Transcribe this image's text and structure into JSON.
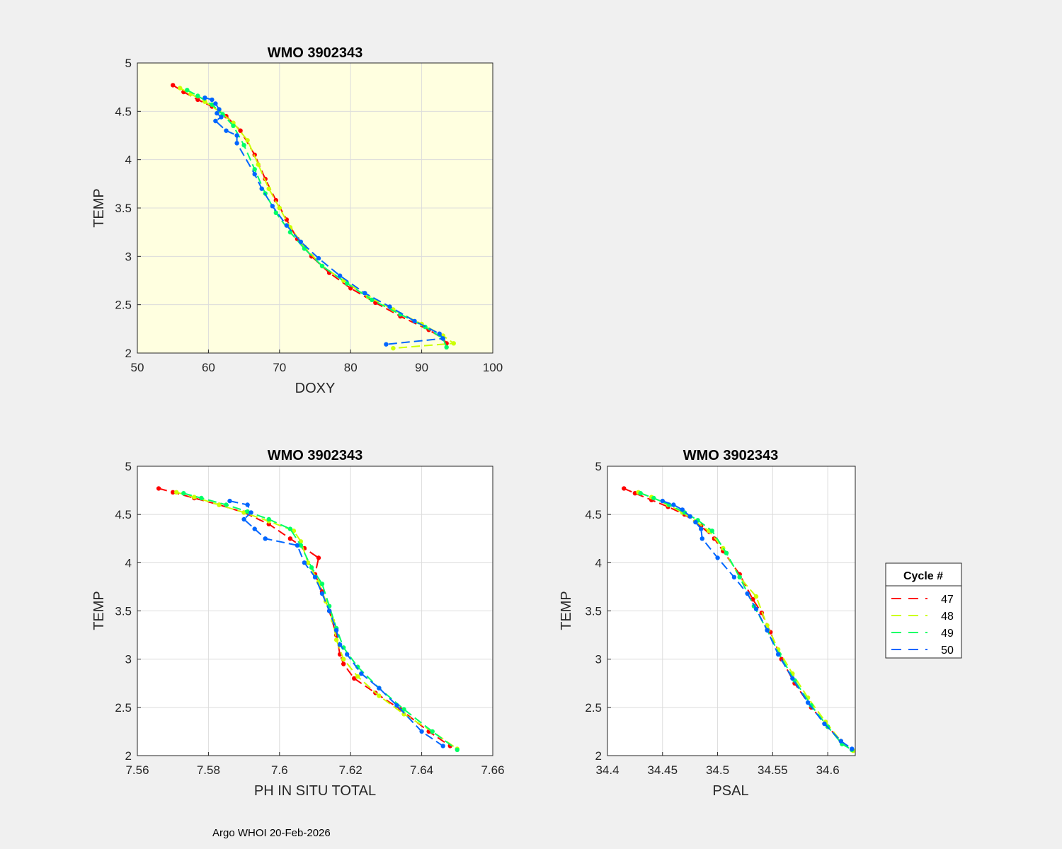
{
  "figure": {
    "background": "#f0f0f0",
    "footer": "Argo WHOI 20-Feb-2026",
    "legend": {
      "title": "Cycle #",
      "entries": [
        {
          "label": "47",
          "color": "#ff0000"
        },
        {
          "label": "48",
          "color": "#ccff00"
        },
        {
          "label": "49",
          "color": "#00ff66"
        },
        {
          "label": "50",
          "color": "#0066ff"
        }
      ]
    }
  },
  "chart_data": [
    {
      "id": "doxy",
      "type": "line",
      "title": "WMO 3902343",
      "xlabel": "DOXY",
      "ylabel": "TEMP",
      "xlim": [
        50,
        100
      ],
      "ylim": [
        2,
        5
      ],
      "xticks": [
        "50",
        "60",
        "70",
        "80",
        "90",
        "100"
      ],
      "xtick_values": [
        50,
        60,
        70,
        80,
        90,
        100
      ],
      "yticks": [
        "2",
        "2.5",
        "3",
        "3.5",
        "4",
        "4.5",
        "5"
      ],
      "ytick_values": [
        2,
        2.5,
        3,
        3.5,
        4,
        4.5,
        5
      ],
      "grid": true,
      "plot_background": "#ffffe0",
      "series": [
        {
          "name": "47",
          "color": "#ff0000",
          "x": [
            55.0,
            56.5,
            58.5,
            60.5,
            62.5,
            64.5,
            66.5,
            68.0,
            69.5,
            71.0,
            72.5,
            74.5,
            77.0,
            80.0,
            83.5,
            87.0,
            91.0,
            93.0,
            93.5
          ],
          "y": [
            4.77,
            4.7,
            4.62,
            4.55,
            4.45,
            4.3,
            4.05,
            3.8,
            3.58,
            3.38,
            3.18,
            3.0,
            2.83,
            2.67,
            2.52,
            2.38,
            2.24,
            2.15,
            2.1
          ]
        },
        {
          "name": "48",
          "color": "#ccff00",
          "x": [
            56.0,
            57.5,
            59.5,
            61.5,
            63.5,
            65.5,
            67.0,
            68.5,
            70.0,
            71.5,
            73.5,
            76.0,
            79.0,
            82.5,
            86.0,
            90.0,
            93.0,
            94.5,
            86.0
          ],
          "y": [
            4.74,
            4.68,
            4.6,
            4.5,
            4.38,
            4.2,
            3.95,
            3.7,
            3.5,
            3.3,
            3.1,
            2.9,
            2.75,
            2.58,
            2.45,
            2.3,
            2.18,
            2.1,
            2.05
          ]
        },
        {
          "name": "49",
          "color": "#00ff66",
          "x": [
            57.0,
            58.5,
            60.5,
            62.0,
            63.5,
            65.0,
            66.5,
            68.0,
            69.5,
            71.5,
            73.5,
            76.0,
            79.5,
            83.0,
            87.0,
            90.5,
            93.0,
            93.5
          ],
          "y": [
            4.72,
            4.66,
            4.57,
            4.47,
            4.35,
            4.15,
            3.9,
            3.65,
            3.45,
            3.25,
            3.08,
            2.9,
            2.72,
            2.55,
            2.4,
            2.27,
            2.15,
            2.06
          ]
        },
        {
          "name": "50",
          "color": "#0066ff",
          "x": [
            59.5,
            60.5,
            61.0,
            61.5,
            61.2,
            61.8,
            61.0,
            62.5,
            64.0,
            64.0,
            66.5,
            67.5,
            69.0,
            71.0,
            73.0,
            75.5,
            78.5,
            82.0,
            85.5,
            89.0,
            92.5,
            93.0,
            85.0
          ],
          "y": [
            4.64,
            4.62,
            4.58,
            4.52,
            4.48,
            4.44,
            4.4,
            4.3,
            4.25,
            4.17,
            3.85,
            3.7,
            3.52,
            3.32,
            3.15,
            2.98,
            2.8,
            2.62,
            2.48,
            2.33,
            2.2,
            2.15,
            2.09
          ]
        }
      ]
    },
    {
      "id": "ph",
      "type": "line",
      "title": "WMO 3902343",
      "xlabel": "PH IN SITU TOTAL",
      "ylabel": "TEMP",
      "xlim": [
        7.56,
        7.66
      ],
      "ylim": [
        2,
        5
      ],
      "xticks": [
        "7.56",
        "7.58",
        "7.6",
        "7.62",
        "7.64",
        "7.66"
      ],
      "xtick_values": [
        7.56,
        7.58,
        7.6,
        7.62,
        7.64,
        7.66
      ],
      "yticks": [
        "2",
        "2.5",
        "3",
        "3.5",
        "4",
        "4.5",
        "5"
      ],
      "ytick_values": [
        2,
        2.5,
        3,
        3.5,
        4,
        4.5,
        5
      ],
      "grid": true,
      "plot_background": "#ffffff",
      "series": [
        {
          "name": "47",
          "color": "#ff0000",
          "x": [
            7.566,
            7.57,
            7.576,
            7.583,
            7.59,
            7.597,
            7.603,
            7.607,
            7.611,
            7.61,
            7.612,
            7.614,
            7.616,
            7.617,
            7.618,
            7.621,
            7.627,
            7.634,
            7.642,
            7.648
          ],
          "y": [
            4.77,
            4.73,
            4.67,
            4.6,
            4.52,
            4.4,
            4.25,
            4.15,
            4.05,
            3.88,
            3.7,
            3.5,
            3.25,
            3.05,
            2.95,
            2.8,
            2.65,
            2.48,
            2.25,
            2.1
          ]
        },
        {
          "name": "48",
          "color": "#ccff00",
          "x": [
            7.571,
            7.576,
            7.583,
            7.59,
            7.597,
            7.604,
            7.606,
            7.608,
            7.611,
            7.613,
            7.615,
            7.616,
            7.618,
            7.622,
            7.628,
            7.635,
            7.643,
            7.65
          ],
          "y": [
            4.73,
            4.68,
            4.6,
            4.52,
            4.43,
            4.33,
            4.22,
            4.0,
            3.8,
            3.6,
            3.4,
            3.2,
            3.0,
            2.82,
            2.62,
            2.43,
            2.25,
            2.07
          ]
        },
        {
          "name": "49",
          "color": "#00ff66",
          "x": [
            7.573,
            7.578,
            7.585,
            7.591,
            7.597,
            7.603,
            7.606,
            7.609,
            7.612,
            7.614,
            7.616,
            7.618,
            7.622,
            7.628,
            7.635,
            7.643,
            7.65
          ],
          "y": [
            4.72,
            4.67,
            4.6,
            4.53,
            4.45,
            4.35,
            4.18,
            3.95,
            3.78,
            3.55,
            3.32,
            3.12,
            2.92,
            2.7,
            2.48,
            2.25,
            2.06
          ]
        },
        {
          "name": "50",
          "color": "#0066ff",
          "x": [
            7.586,
            7.591,
            7.592,
            7.59,
            7.593,
            7.596,
            7.605,
            7.607,
            7.61,
            7.612,
            7.614,
            7.616,
            7.617,
            7.619,
            7.623,
            7.628,
            7.633,
            7.64,
            7.646
          ],
          "y": [
            4.64,
            4.6,
            4.52,
            4.45,
            4.35,
            4.25,
            4.18,
            4.0,
            3.85,
            3.68,
            3.5,
            3.3,
            3.15,
            3.05,
            2.85,
            2.7,
            2.52,
            2.25,
            2.1
          ]
        }
      ]
    },
    {
      "id": "psal",
      "type": "line",
      "title": "WMO 3902343",
      "xlabel": "PSAL",
      "ylabel": "TEMP",
      "xlim": [
        34.4,
        34.625
      ],
      "ylim": [
        2,
        5
      ],
      "xticks": [
        "34.4",
        "34.45",
        "34.5",
        "34.55",
        "34.6"
      ],
      "xtick_values": [
        34.4,
        34.45,
        34.5,
        34.55,
        34.6
      ],
      "yticks": [
        "2",
        "2.5",
        "3",
        "3.5",
        "4",
        "4.5",
        "5"
      ],
      "ytick_values": [
        2,
        2.5,
        3,
        3.5,
        4,
        4.5,
        5
      ],
      "grid": true,
      "plot_background": "#ffffff",
      "series": [
        {
          "name": "47",
          "color": "#ff0000",
          "x": [
            34.415,
            34.425,
            34.44,
            34.455,
            34.47,
            34.485,
            34.497,
            34.505,
            34.52,
            34.532,
            34.54,
            34.548,
            34.558,
            34.57,
            34.585,
            34.6,
            34.612,
            34.622
          ],
          "y": [
            4.77,
            4.72,
            4.65,
            4.58,
            4.5,
            4.38,
            4.25,
            4.12,
            3.88,
            3.62,
            3.48,
            3.28,
            3.0,
            2.75,
            2.5,
            2.3,
            2.15,
            2.06
          ]
        },
        {
          "name": "48",
          "color": "#ccff00",
          "x": [
            34.428,
            34.44,
            34.455,
            34.468,
            34.48,
            34.492,
            34.505,
            34.52,
            34.535,
            34.545,
            34.555,
            34.568,
            34.582,
            34.598,
            34.612,
            34.623
          ],
          "y": [
            4.73,
            4.68,
            4.6,
            4.52,
            4.43,
            4.33,
            4.15,
            3.85,
            3.65,
            3.35,
            3.1,
            2.85,
            2.6,
            2.35,
            2.15,
            2.05
          ]
        },
        {
          "name": "49",
          "color": "#00ff66",
          "x": [
            34.43,
            34.442,
            34.456,
            34.47,
            34.482,
            34.495,
            34.508,
            34.52,
            34.533,
            34.545,
            34.556,
            34.57,
            34.585,
            34.6,
            34.613,
            34.622
          ],
          "y": [
            4.72,
            4.67,
            4.6,
            4.52,
            4.44,
            4.33,
            4.1,
            3.85,
            3.55,
            3.3,
            3.05,
            2.78,
            2.52,
            2.3,
            2.12,
            2.06
          ]
        },
        {
          "name": "50",
          "color": "#0066ff",
          "x": [
            34.45,
            34.46,
            34.468,
            34.475,
            34.48,
            34.485,
            34.486,
            34.5,
            34.515,
            34.527,
            34.535,
            34.545,
            34.555,
            34.568,
            34.582,
            34.597,
            34.612,
            34.622
          ],
          "y": [
            4.64,
            4.6,
            4.55,
            4.48,
            4.42,
            4.35,
            4.25,
            4.05,
            3.85,
            3.68,
            3.52,
            3.3,
            3.05,
            2.8,
            2.55,
            2.33,
            2.15,
            2.07
          ]
        }
      ]
    }
  ]
}
